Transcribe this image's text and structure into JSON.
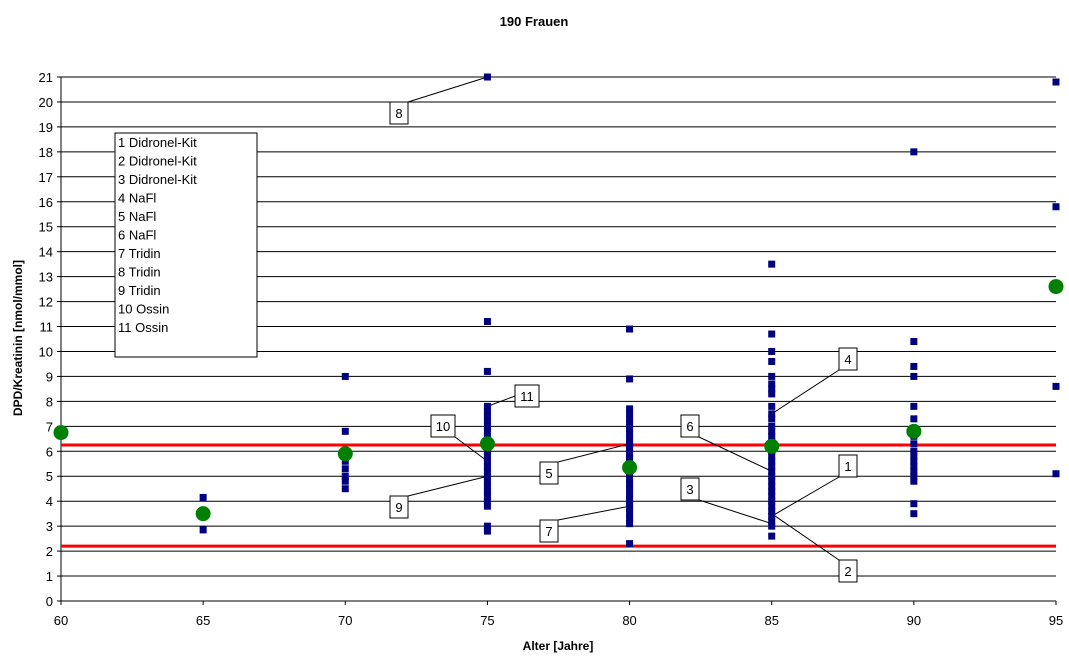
{
  "chart_data": {
    "type": "scatter",
    "title": "190 Frauen",
    "xlabel": "Alter [Jahre]",
    "ylabel": "DPD/Kreatinin [nmol/mmol]",
    "xlim": [
      60,
      95
    ],
    "ylim": [
      0,
      21
    ],
    "xticks": [
      "60",
      "65",
      "70",
      "75",
      "80",
      "85",
      "90",
      "95"
    ],
    "yticks": [
      "0",
      "1",
      "2",
      "3",
      "4",
      "5",
      "6",
      "7",
      "8",
      "9",
      "10",
      "11",
      "12",
      "13",
      "14",
      "15",
      "16",
      "17",
      "18",
      "19",
      "20",
      "21"
    ],
    "grid": "horizontal",
    "series": [
      {
        "role": "individual",
        "color": "#000080",
        "marker": "square",
        "points": [
          [
            65,
            4.15
          ],
          [
            65,
            2.85
          ],
          [
            70,
            9.0
          ],
          [
            70,
            6.8
          ],
          [
            70,
            5.6
          ],
          [
            70,
            5.3
          ],
          [
            70,
            5.0
          ],
          [
            70,
            4.8
          ],
          [
            70,
            4.5
          ],
          [
            75,
            21.0
          ],
          [
            75,
            11.2
          ],
          [
            75,
            9.2
          ],
          [
            75,
            7.8
          ],
          [
            75,
            7.6
          ],
          [
            75,
            7.4
          ],
          [
            75,
            7.2
          ],
          [
            75,
            7.0
          ],
          [
            75,
            6.8
          ],
          [
            75,
            6.6
          ],
          [
            75,
            6.4
          ],
          [
            75,
            6.2
          ],
          [
            75,
            6.0
          ],
          [
            75,
            5.8
          ],
          [
            75,
            5.6
          ],
          [
            75,
            5.4
          ],
          [
            75,
            5.2
          ],
          [
            75,
            5.0
          ],
          [
            75,
            4.8
          ],
          [
            75,
            4.6
          ],
          [
            75,
            4.4
          ],
          [
            75,
            4.2
          ],
          [
            75,
            4.0
          ],
          [
            75,
            3.8
          ],
          [
            75,
            3.0
          ],
          [
            75,
            2.8
          ],
          [
            80,
            10.9
          ],
          [
            80,
            8.9
          ],
          [
            80,
            7.7
          ],
          [
            80,
            7.5
          ],
          [
            80,
            7.3
          ],
          [
            80,
            7.1
          ],
          [
            80,
            6.9
          ],
          [
            80,
            6.7
          ],
          [
            80,
            6.5
          ],
          [
            80,
            6.3
          ],
          [
            80,
            6.1
          ],
          [
            80,
            5.9
          ],
          [
            80,
            5.7
          ],
          [
            80,
            5.5
          ],
          [
            80,
            5.3
          ],
          [
            80,
            5.1
          ],
          [
            80,
            4.9
          ],
          [
            80,
            4.7
          ],
          [
            80,
            4.5
          ],
          [
            80,
            4.3
          ],
          [
            80,
            4.1
          ],
          [
            80,
            3.9
          ],
          [
            80,
            3.7
          ],
          [
            80,
            3.5
          ],
          [
            80,
            3.3
          ],
          [
            80,
            3.1
          ],
          [
            80,
            2.3
          ],
          [
            85,
            13.5
          ],
          [
            85,
            10.7
          ],
          [
            85,
            10.0
          ],
          [
            85,
            9.6
          ],
          [
            85,
            9.0
          ],
          [
            85,
            8.7
          ],
          [
            85,
            8.5
          ],
          [
            85,
            8.3
          ],
          [
            85,
            7.8
          ],
          [
            85,
            7.5
          ],
          [
            85,
            7.3
          ],
          [
            85,
            7.0
          ],
          [
            85,
            6.8
          ],
          [
            85,
            6.6
          ],
          [
            85,
            6.4
          ],
          [
            85,
            6.2
          ],
          [
            85,
            6.0
          ],
          [
            85,
            5.8
          ],
          [
            85,
            5.6
          ],
          [
            85,
            5.4
          ],
          [
            85,
            5.2
          ],
          [
            85,
            5.0
          ],
          [
            85,
            4.8
          ],
          [
            85,
            4.6
          ],
          [
            85,
            4.4
          ],
          [
            85,
            4.2
          ],
          [
            85,
            4.0
          ],
          [
            85,
            3.8
          ],
          [
            85,
            3.6
          ],
          [
            85,
            3.4
          ],
          [
            85,
            3.2
          ],
          [
            85,
            3.0
          ],
          [
            85,
            2.6
          ],
          [
            90,
            18.0
          ],
          [
            90,
            10.4
          ],
          [
            90,
            9.4
          ],
          [
            90,
            9.0
          ],
          [
            90,
            7.8
          ],
          [
            90,
            7.3
          ],
          [
            90,
            6.9
          ],
          [
            90,
            6.6
          ],
          [
            90,
            6.3
          ],
          [
            90,
            6.0
          ],
          [
            90,
            5.8
          ],
          [
            90,
            5.6
          ],
          [
            90,
            5.4
          ],
          [
            90,
            5.2
          ],
          [
            90,
            5.0
          ],
          [
            90,
            4.8
          ],
          [
            90,
            3.9
          ],
          [
            90,
            3.5
          ],
          [
            95,
            20.8
          ],
          [
            95,
            15.8
          ],
          [
            95,
            8.6
          ],
          [
            95,
            5.1
          ]
        ]
      },
      {
        "role": "mean",
        "color": "#008000",
        "marker": "circle",
        "points": [
          [
            60,
            6.75
          ],
          [
            65,
            3.5
          ],
          [
            70,
            5.9
          ],
          [
            75,
            6.3
          ],
          [
            80,
            5.35
          ],
          [
            85,
            6.2
          ],
          [
            90,
            6.8
          ],
          [
            95,
            12.6
          ]
        ]
      }
    ],
    "reference_lines": [
      {
        "y": 6.25,
        "color": "#ff0000"
      },
      {
        "y": 2.2,
        "color": "#ff0000"
      }
    ],
    "legend": {
      "placement": "top-left",
      "entries": [
        "1  Didronel-Kit",
        "2  Didronel-Kit",
        "3  Didronel-Kit",
        "4  NaFl",
        "5  NaFl",
        "6  NaFl",
        "7  Tridin",
        "8  Tridin",
        "9  Tridin",
        "10 Ossin",
        "11 Ossin"
      ]
    },
    "annotations": [
      {
        "label": "8",
        "target": [
          75,
          21.0
        ]
      },
      {
        "label": "11",
        "target": [
          75,
          7.8
        ]
      },
      {
        "label": "10",
        "target": [
          75,
          5.6
        ]
      },
      {
        "label": "9",
        "target": [
          75,
          5.0
        ]
      },
      {
        "label": "5",
        "target": [
          80,
          6.3
        ]
      },
      {
        "label": "7",
        "target": [
          80,
          3.8
        ]
      },
      {
        "label": "6",
        "target": [
          85,
          5.2
        ]
      },
      {
        "label": "4",
        "target": [
          85,
          7.5
        ]
      },
      {
        "label": "3",
        "target": [
          85,
          3.1
        ]
      },
      {
        "label": "1",
        "target": [
          85,
          3.4
        ]
      },
      {
        "label": "2",
        "target": [
          85,
          3.5
        ]
      }
    ]
  }
}
